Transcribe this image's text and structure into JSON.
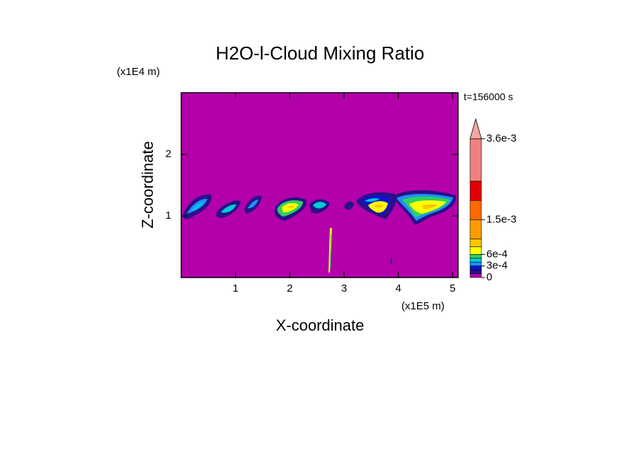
{
  "chart_data": {
    "type": "contour",
    "title": "H2O-l-Cloud Mixing Ratio",
    "xlabel": "X-coordinate",
    "ylabel": "Z-coordinate",
    "xunit": "(x1E5 m)",
    "yunit": "(x1E4 m)",
    "annotation": "t=156000 s",
    "xlim": [
      0,
      5.1
    ],
    "ylim": [
      0,
      3
    ],
    "xticks": [
      1,
      2,
      3,
      4,
      5
    ],
    "yticks": [
      1,
      2
    ],
    "background_color": "#b300ab",
    "colorbar": {
      "lim": [
        0,
        0.0036
      ],
      "levels": [
        0,
        0.0001,
        0.0002,
        0.0003,
        0.0004,
        0.0005,
        0.0006,
        0.0008,
        0.001,
        0.0015,
        0.002,
        0.0025,
        0.0036
      ],
      "colors": [
        "#b000b0",
        "#2a108a",
        "#1010d0",
        "#1e90ff",
        "#00c8d8",
        "#30d060",
        "#ffff00",
        "#ffc800",
        "#ff9c00",
        "#ff6a00",
        "#e00000",
        "#f08080"
      ],
      "extend_color": "#f4a8a0",
      "ticks": [
        {
          "value": 0,
          "label": "0"
        },
        {
          "value": 0.0003,
          "label": "3e-4"
        },
        {
          "value": 0.0006,
          "label": "6e-4"
        },
        {
          "value": 0.0015,
          "label": "1.5e-3"
        },
        {
          "value": 0.0036,
          "label": "3.6e-3"
        }
      ]
    }
  }
}
